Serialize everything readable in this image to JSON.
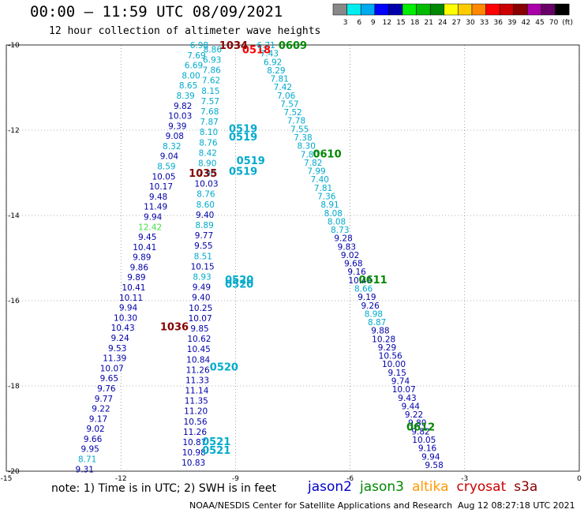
{
  "header": {
    "title": "00:00 – 11:59 UTC 08/09/2021",
    "subtitle": "12 hour collection of altimeter wave heights"
  },
  "note": "note: 1) Time is in UTC; 2) SWH is in feet",
  "legend": [
    {
      "name": "jason2",
      "color": "#0000cc"
    },
    {
      "name": "jason3",
      "color": "#008800"
    },
    {
      "name": "altika",
      "color": "#ff9900"
    },
    {
      "name": "cryosat",
      "color": "#cc0000"
    },
    {
      "name": "s3a",
      "color": "#880000"
    }
  ],
  "footer": {
    "credit": "NOAA/NESDIS Center for Satellite Applications and Research",
    "timestamp": "Aug 12 08:27:18 UTC 2021"
  },
  "color_scale": {
    "labels": [
      "3",
      "6",
      "9",
      "12",
      "15",
      "18",
      "21",
      "24",
      "27",
      "30",
      "33",
      "36",
      "39",
      "42",
      "45",
      "70",
      "(ft)"
    ],
    "colors": [
      "#888888",
      "#00eeee",
      "#00aaee",
      "#0000ff",
      "#0000aa",
      "#00ee00",
      "#00bb00",
      "#008800",
      "#ffff00",
      "#ffcc00",
      "#ff8800",
      "#ff0000",
      "#cc0000",
      "#880000",
      "#aa00aa",
      "#660066",
      "#000000"
    ]
  },
  "chart_data": {
    "type": "scatter",
    "xlim": [
      -15,
      0
    ],
    "ylim": [
      -20,
      -10
    ],
    "x_ticks": [
      "-15",
      "-12",
      "-9",
      "-6",
      "-3",
      "0"
    ],
    "y_ticks": [
      "-10",
      "-12",
      "-14",
      "-16",
      "-18",
      "-20"
    ],
    "grid": true,
    "value_colors": {
      "lt6": "#00aacc",
      "lt9": "#00aacc",
      "lt12": "#0000aa",
      "lt15": "#44dd44"
    },
    "tracks": [
      {
        "name": "cryosat-0518",
        "color": "#ff0000",
        "values": [
          "6.98",
          "7.69",
          "6.69",
          "8.00",
          "8.65",
          "8.39",
          "9.82",
          "10.03",
          "9.39",
          "9.08",
          "8.32",
          "9.04",
          "8.59",
          "10.05",
          "10.17",
          "9.48",
          "11.49",
          "9.94",
          "12.42",
          "9.45",
          "10.41",
          "9.89",
          "9.86",
          "9.89",
          "10.41",
          "10.11",
          "9.94",
          "10.30",
          "10.43",
          "9.24",
          "9.53",
          "11.39",
          "10.07",
          "9.65",
          "9.76",
          "9.77",
          "9.22",
          "9.17",
          "9.02",
          "9.66",
          "9.95",
          "8.71",
          "9.31"
        ],
        "x_start": -9.95,
        "x_end": -12.95,
        "y_start": -10.0,
        "y_end": -19.95,
        "labels": [
          {
            "text": "0518",
            "x": -8.45,
            "y": -10.1
          }
        ]
      },
      {
        "name": "inner-column",
        "color": "#00aacc",
        "values": [
          "8.86",
          "6.93",
          "7.86",
          "7.62",
          "8.15",
          "7.57",
          "7.68",
          "7.87",
          "8.10",
          "8.76",
          "8.42",
          "8.90",
          "7.90",
          "10.03",
          "8.76",
          "8.60",
          "9.40",
          "8.89",
          "9.77",
          "9.55",
          "8.51",
          "10.15",
          "8.93",
          "9.49",
          "9.40",
          "10.25",
          "10.07",
          "9.85",
          "10.62",
          "10.45",
          "10.84",
          "11.26",
          "11.33",
          "11.14",
          "11.35",
          "11.20",
          "10.56",
          "11.26",
          "10.87",
          "10.98",
          "10.83"
        ],
        "x_start": -9.6,
        "x_end": -10.1,
        "y_start": -10.1,
        "y_end": -19.8,
        "labels": [
          {
            "text": "0519",
            "x": -8.8,
            "y": -11.95
          },
          {
            "text": "0519",
            "x": -8.8,
            "y": -12.15
          },
          {
            "text": "0519",
            "x": -8.6,
            "y": -12.7
          },
          {
            "text": "0519",
            "x": -8.8,
            "y": -12.95
          },
          {
            "text": "0520",
            "x": -8.9,
            "y": -15.5
          },
          {
            "text": "0520",
            "x": -8.9,
            "y": -15.6
          },
          {
            "text": "0520",
            "x": -9.3,
            "y": -17.55
          },
          {
            "text": "0521",
            "x": -9.5,
            "y": -19.3
          },
          {
            "text": "0521",
            "x": -9.5,
            "y": -19.5
          }
        ]
      },
      {
        "name": "jason3-0609",
        "color": "#008800",
        "values": [
          "6.71",
          "7.43",
          "6.92",
          "8.29",
          "7.81",
          "7.42",
          "7.06",
          "7.57",
          "7.52",
          "7.78",
          "7.55",
          "7.38",
          "8.30",
          "7.80",
          "7.82",
          "7.99",
          "7.40",
          "7.81",
          "7.36",
          "8.91",
          "8.08",
          "8.08",
          "8.73",
          "9.28",
          "9.83",
          "9.02",
          "9.68",
          "9.16",
          "10.49",
          "8.66",
          "9.19",
          "9.26",
          "8.98",
          "8.87",
          "9.88",
          "10.28",
          "9.29",
          "10.56",
          "10.00",
          "9.15",
          "9.74",
          "10.07",
          "9.43",
          "9.44",
          "9.22",
          "9.80",
          "9.82",
          "10.05",
          "9.16",
          "9.94",
          "9.58"
        ],
        "x_start": -8.2,
        "x_end": -3.8,
        "y_start": -10.0,
        "y_end": -19.85,
        "labels": [
          {
            "text": "0609",
            "x": -7.5,
            "y": -10.0
          },
          {
            "text": "0610",
            "x": -6.6,
            "y": -12.55
          },
          {
            "text": "0611",
            "x": -5.4,
            "y": -15.5
          },
          {
            "text": "0612",
            "x": -4.15,
            "y": -18.95
          }
        ]
      },
      {
        "name": "s3a",
        "color": "#880000",
        "values": [],
        "labels": [
          {
            "text": "1034",
            "x": -9.05,
            "y": -10.0
          },
          {
            "text": "1035",
            "x": -9.85,
            "y": -13.0
          },
          {
            "text": "1036",
            "x": -10.6,
            "y": -16.6
          }
        ]
      }
    ]
  }
}
